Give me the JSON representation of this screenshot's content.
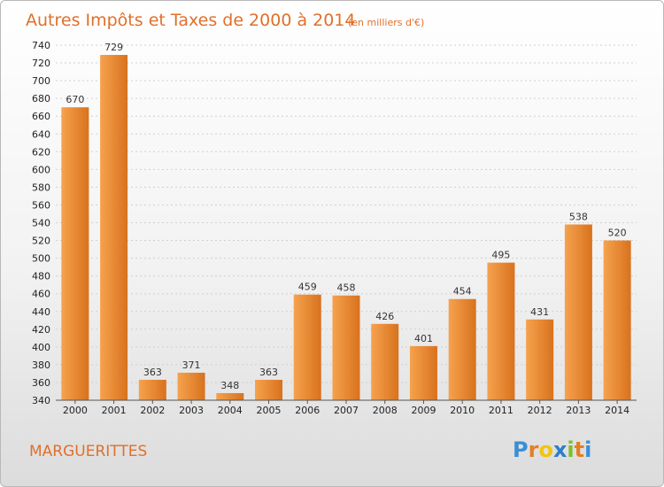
{
  "chart_data": {
    "type": "bar",
    "title": "Autres Impôts et Taxes de 2000 à 2014",
    "subtitle": "(en milliers d'€)",
    "categories": [
      "2000",
      "2001",
      "2002",
      "2003",
      "2004",
      "2005",
      "2006",
      "2007",
      "2008",
      "2009",
      "2010",
      "2011",
      "2012",
      "2013",
      "2014"
    ],
    "values": [
      670,
      729,
      363,
      371,
      348,
      363,
      459,
      458,
      426,
      401,
      454,
      495,
      431,
      538,
      520
    ],
    "ylim": [
      340,
      740
    ],
    "ytick_step": 20,
    "grid": true,
    "bar_colors": {
      "light": "#f6a24e",
      "dark": "#d8721e"
    }
  },
  "footer": {
    "commune": "MARGUERITTES",
    "brand": [
      "P",
      "r",
      "o",
      "x",
      "i",
      "t",
      "i"
    ],
    "brand_colors": [
      "#3a8fd6",
      "#e67e22",
      "#f1c40f",
      "#2c7fc8",
      "#7bbf2a",
      "#e67e22",
      "#3a8fd6"
    ]
  }
}
